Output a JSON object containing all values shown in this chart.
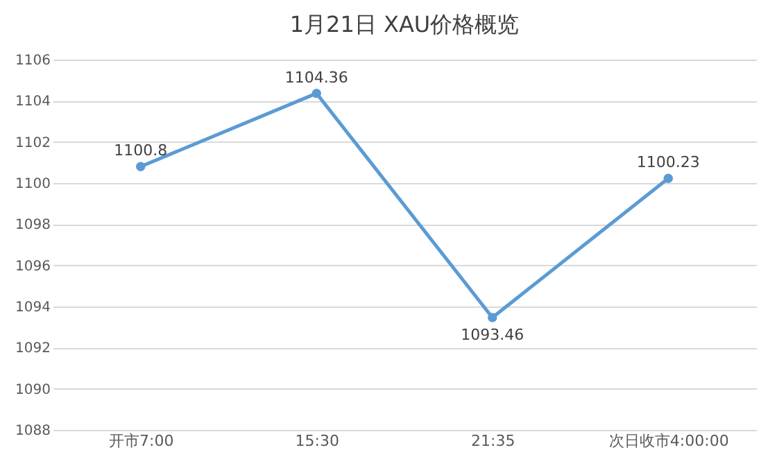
{
  "chart_data": {
    "type": "line",
    "title": "1月21日 XAU价格概览",
    "categories": [
      "开市7:00",
      "15:30",
      "21:35",
      "次日收市4:00:00"
    ],
    "series": [
      {
        "color": "#5b9bd5",
        "values": [
          1100.8,
          1104.36,
          1093.46,
          1100.23
        ]
      }
    ],
    "ylim": [
      1088,
      1106
    ],
    "yticks": [
      1088,
      1090,
      1092,
      1094,
      1096,
      1098,
      1100,
      1102,
      1104,
      1106
    ],
    "grid": "y",
    "marker": "circle",
    "line_style": "solid",
    "data_labels": true
  }
}
